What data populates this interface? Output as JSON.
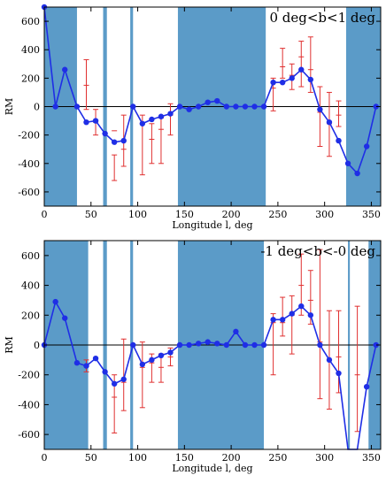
{
  "chart_data": [
    {
      "type": "line",
      "title": "0 deg<b<1 deg",
      "xlabel": "Longitude l, deg",
      "ylabel": "RM",
      "xlim": [
        0,
        360
      ],
      "ylim": [
        -700,
        700
      ],
      "xticks": [
        0,
        50,
        100,
        150,
        200,
        250,
        300,
        350
      ],
      "yticks": [
        -600,
        -400,
        -200,
        0,
        200,
        400,
        600
      ],
      "band_color": "#5b9bc8",
      "line_color": "#1f2ee6",
      "error_color": "#e03030",
      "shaded_ranges": [
        [
          0,
          35
        ],
        [
          63,
          67
        ],
        [
          92,
          95
        ],
        [
          143,
          237
        ],
        [
          323,
          360
        ]
      ],
      "series": [
        {
          "x": [
            0,
            12,
            22,
            35,
            45,
            55,
            65,
            75,
            85,
            95,
            105,
            115,
            125,
            135,
            145,
            155,
            165,
            175,
            185,
            195,
            205,
            215,
            225,
            235,
            245,
            255,
            265,
            275,
            285,
            295,
            305,
            315,
            325,
            335,
            345,
            355
          ],
          "y": [
            700,
            0,
            260,
            0,
            -110,
            -100,
            -190,
            -250,
            -240,
            0,
            -120,
            -90,
            -70,
            -50,
            0,
            -20,
            0,
            30,
            40,
            0,
            0,
            0,
            0,
            0,
            170,
            170,
            200,
            260,
            190,
            -20,
            -110,
            -240,
            -400,
            -470,
            -280,
            0
          ]
        }
      ],
      "error_bars": [
        {
          "x": 45,
          "y": 150,
          "lo": -20,
          "hi": 330
        },
        {
          "x": 55,
          "y": -110,
          "lo": -200,
          "hi": -20
        },
        {
          "x": 75,
          "y": -170,
          "lo": -520,
          "hi": -340
        },
        {
          "x": 85,
          "y": -300,
          "lo": -420,
          "hi": -60
        },
        {
          "x": 105,
          "y": -120,
          "lo": -480,
          "hi": -60
        },
        {
          "x": 115,
          "y": -230,
          "lo": -400,
          "hi": -120
        },
        {
          "x": 125,
          "y": -160,
          "lo": -400,
          "hi": -80
        },
        {
          "x": 135,
          "y": -60,
          "lo": -200,
          "hi": 20
        },
        {
          "x": 245,
          "y": 130,
          "lo": -30,
          "hi": 200
        },
        {
          "x": 255,
          "y": 280,
          "lo": 200,
          "hi": 410
        },
        {
          "x": 265,
          "y": 220,
          "lo": 120,
          "hi": 300
        },
        {
          "x": 275,
          "y": 350,
          "lo": 140,
          "hi": 460
        },
        {
          "x": 285,
          "y": 260,
          "lo": 100,
          "hi": 490
        },
        {
          "x": 295,
          "y": -40,
          "lo": -280,
          "hi": 140
        },
        {
          "x": 305,
          "y": -120,
          "lo": -350,
          "hi": 100
        },
        {
          "x": 315,
          "y": -60,
          "lo": -140,
          "hi": 40
        }
      ]
    },
    {
      "type": "line",
      "title": "-1 deg<b<-0 deg",
      "xlabel": "Longitude l, deg",
      "ylabel": "RM",
      "xlim": [
        0,
        360
      ],
      "ylim": [
        -700,
        700
      ],
      "xticks": [
        0,
        50,
        100,
        150,
        200,
        250,
        300,
        350
      ],
      "yticks": [
        -600,
        -400,
        -200,
        0,
        200,
        400,
        600
      ],
      "band_color": "#5b9bc8",
      "line_color": "#1f2ee6",
      "error_color": "#e03030",
      "shaded_ranges": [
        [
          0,
          47
        ],
        [
          63,
          67
        ],
        [
          92,
          95
        ],
        [
          143,
          235
        ],
        [
          325,
          327
        ],
        [
          347,
          360
        ]
      ],
      "series": [
        {
          "x": [
            0,
            12,
            22,
            35,
            45,
            55,
            65,
            75,
            85,
            95,
            105,
            115,
            125,
            135,
            145,
            155,
            165,
            175,
            185,
            195,
            205,
            215,
            225,
            235,
            245,
            255,
            265,
            275,
            285,
            295,
            305,
            315,
            325,
            335,
            345,
            355
          ],
          "y": [
            0,
            290,
            180,
            -120,
            -140,
            -90,
            -180,
            -260,
            -230,
            0,
            -130,
            -100,
            -70,
            -50,
            0,
            0,
            10,
            20,
            10,
            0,
            90,
            0,
            0,
            0,
            170,
            170,
            210,
            260,
            200,
            0,
            -100,
            -190,
            -730,
            -730,
            -280,
            0
          ]
        }
      ],
      "error_bars": [
        {
          "x": 45,
          "y": -140,
          "lo": -180,
          "hi": -100
        },
        {
          "x": 75,
          "y": -350,
          "lo": -590,
          "hi": -200
        },
        {
          "x": 85,
          "y": -250,
          "lo": -440,
          "hi": 40
        },
        {
          "x": 105,
          "y": -150,
          "lo": -420,
          "hi": 20
        },
        {
          "x": 115,
          "y": -120,
          "lo": -250,
          "hi": -60
        },
        {
          "x": 125,
          "y": -150,
          "lo": -250,
          "hi": -60
        },
        {
          "x": 135,
          "y": -80,
          "lo": -140,
          "hi": -20
        },
        {
          "x": 245,
          "y": 150,
          "lo": -200,
          "hi": 210
        },
        {
          "x": 255,
          "y": 150,
          "lo": 60,
          "hi": 320
        },
        {
          "x": 265,
          "y": 200,
          "lo": -60,
          "hi": 330
        },
        {
          "x": 275,
          "y": 400,
          "lo": 200,
          "hi": 610
        },
        {
          "x": 285,
          "y": 300,
          "lo": 140,
          "hi": 500
        },
        {
          "x": 295,
          "y": 20,
          "lo": -360,
          "hi": 640
        },
        {
          "x": 305,
          "y": -100,
          "lo": -430,
          "hi": 230
        },
        {
          "x": 315,
          "y": -80,
          "lo": -320,
          "hi": 230
        },
        {
          "x": 335,
          "y": -200,
          "lo": -580,
          "hi": 260
        }
      ]
    }
  ]
}
